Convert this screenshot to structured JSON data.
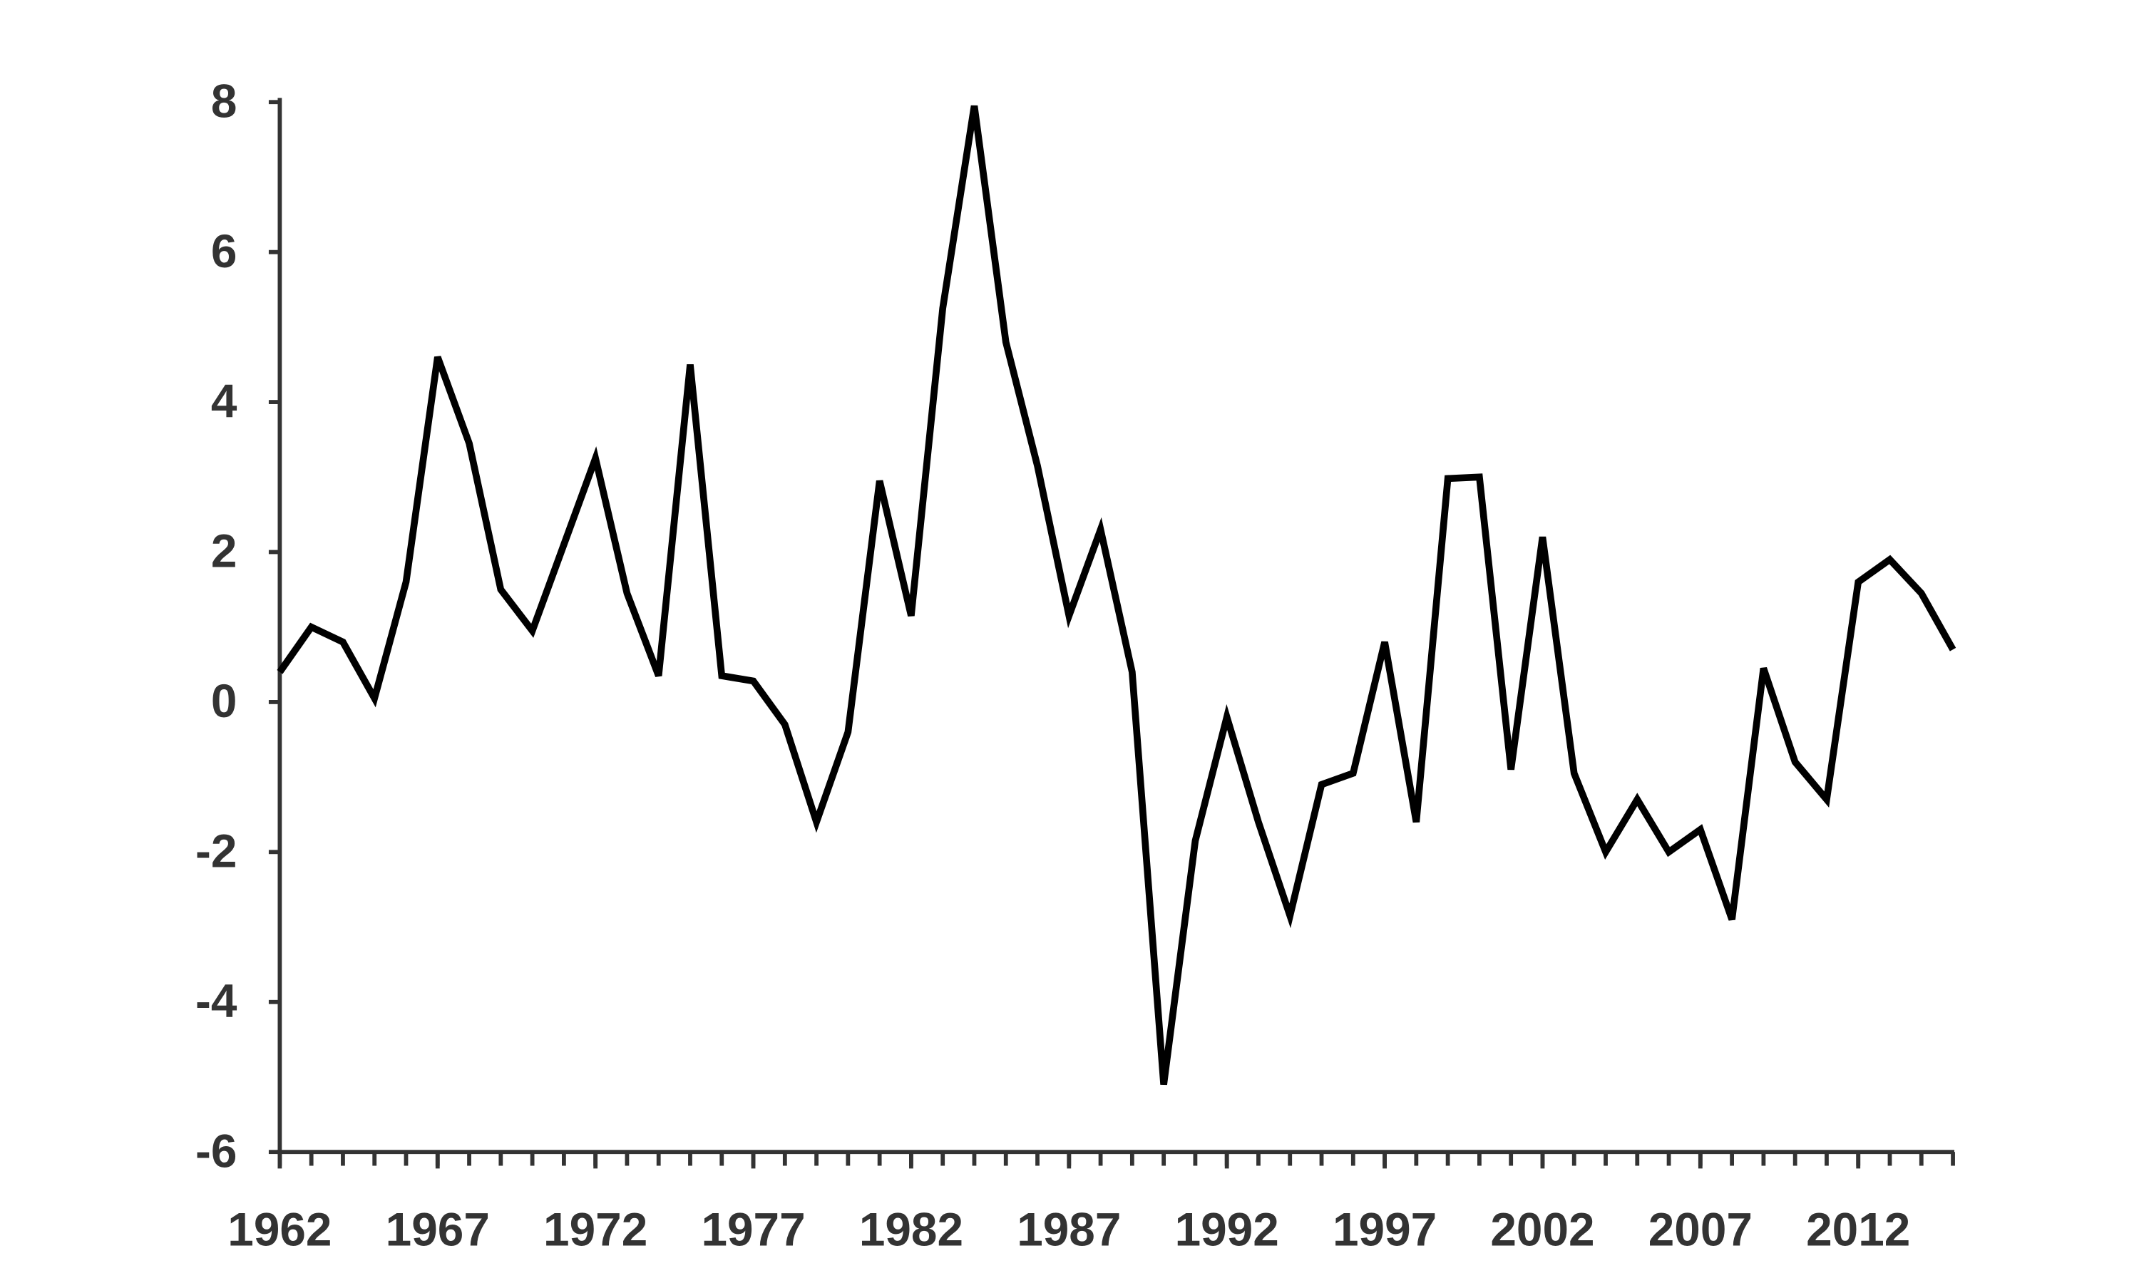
{
  "chart_data": {
    "type": "line",
    "x": [
      1962,
      1963,
      1964,
      1965,
      1966,
      1967,
      1968,
      1969,
      1970,
      1971,
      1972,
      1973,
      1974,
      1975,
      1976,
      1977,
      1978,
      1979,
      1980,
      1981,
      1982,
      1983,
      1984,
      1985,
      1986,
      1987,
      1988,
      1989,
      1990,
      1991,
      1992,
      1993,
      1994,
      1995,
      1996,
      1997,
      1998,
      1999,
      2000,
      2001,
      2002,
      2003,
      2004,
      2005,
      2006,
      2007,
      2008,
      2009,
      2010,
      2011,
      2012,
      2013,
      2014,
      2015
    ],
    "values": [
      0.4,
      1.0,
      0.8,
      0.05,
      1.6,
      4.6,
      3.45,
      1.5,
      0.95,
      2.1,
      3.25,
      1.45,
      0.35,
      4.5,
      0.35,
      0.28,
      -0.3,
      -1.6,
      -0.4,
      2.95,
      1.15,
      5.25,
      7.95,
      4.8,
      3.15,
      1.15,
      2.3,
      0.4,
      -5.1,
      -1.85,
      -0.2,
      -1.6,
      -2.85,
      -1.1,
      -0.95,
      0.8,
      -1.6,
      2.98,
      3.0,
      -0.9,
      2.2,
      -0.95,
      -2.0,
      -1.3,
      -2.0,
      -1.7,
      -2.9,
      0.45,
      -0.8,
      -1.3,
      1.6,
      1.9,
      1.45,
      0.7
    ],
    "color": "#000000",
    "xlim": [
      1962,
      2015
    ],
    "xticks": [
      1962,
      1967,
      1972,
      1977,
      1982,
      1987,
      1992,
      1997,
      2002,
      2007,
      2012
    ],
    "ylim": [
      -6,
      8
    ],
    "yticks": [
      -6,
      -4,
      -2,
      0,
      2,
      4,
      6,
      8
    ],
    "grid": false
  }
}
